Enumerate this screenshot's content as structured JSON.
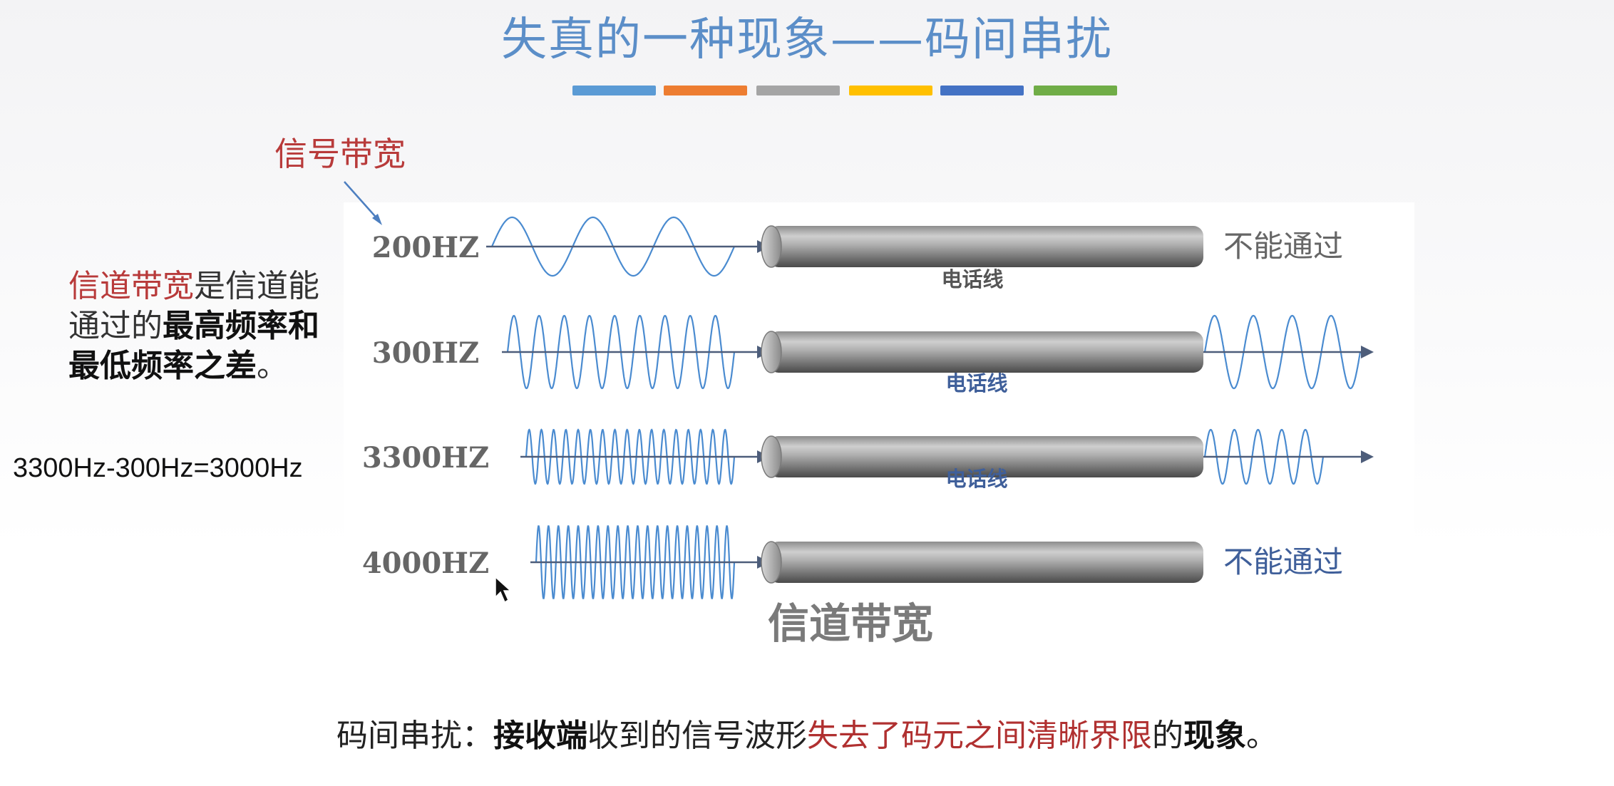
{
  "title": "失真的一种现象——码间串扰",
  "accent_colors": [
    "#5b9bd5",
    "#ed7d31",
    "#a5a5a5",
    "#ffc000",
    "#4472c4",
    "#70ad47"
  ],
  "signal_bandwidth_label": "信号带宽",
  "definition": {
    "red": "信道带宽",
    "normal1": "是信道能通过的",
    "bold1": "最高频率",
    "normal2": "和",
    "bold2": "最低频率之差",
    "normal3": "。"
  },
  "formula": "3300Hz-300Hz=3000Hz",
  "rows": [
    {
      "freq": "200HZ",
      "wire_label": "电话线",
      "result": "不能通过",
      "passes": false
    },
    {
      "freq": "300HZ",
      "wire_label": "电话线",
      "result": "",
      "passes": true
    },
    {
      "freq": "3300HZ",
      "wire_label": "电话线",
      "result": "",
      "passes": true
    },
    {
      "freq": "4000HZ",
      "wire_label": "",
      "result": "不能通过",
      "passes": false
    }
  ],
  "channel_bandwidth_caption": "信道带宽",
  "bottom": {
    "p1": "码间串扰：",
    "b1": "接收端",
    "p2": "收到的信号波形",
    "r1": "失去了码元之间清晰界限",
    "p3": "的",
    "b2": "现象",
    "p4": "。"
  }
}
